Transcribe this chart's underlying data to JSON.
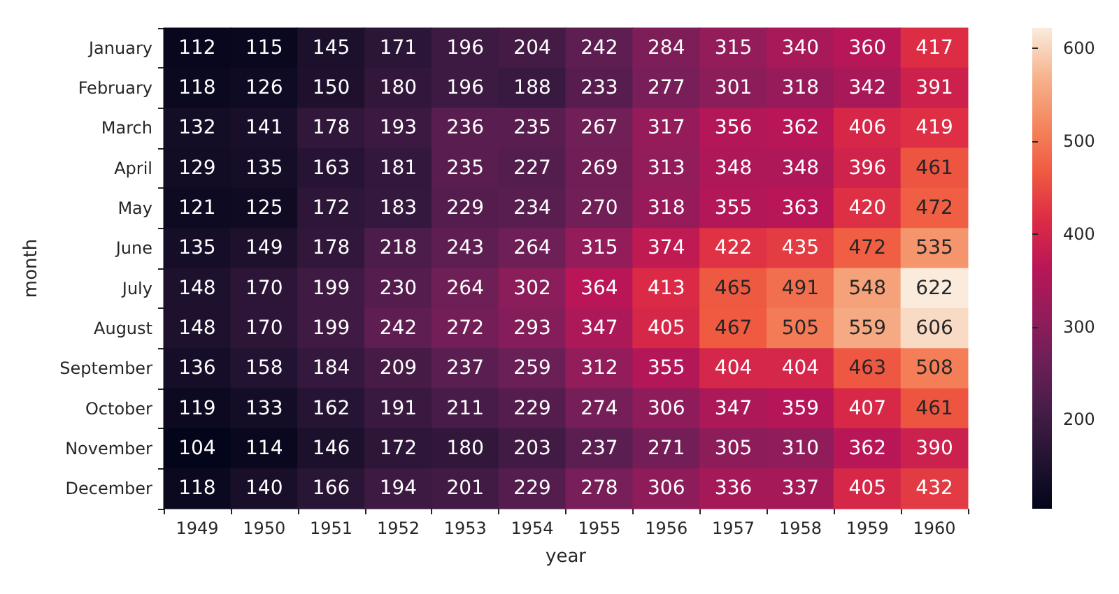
{
  "chart_data": {
    "type": "heatmap",
    "xlabel": "year",
    "ylabel": "month",
    "categories": [
      "1949",
      "1950",
      "1951",
      "1952",
      "1953",
      "1954",
      "1955",
      "1956",
      "1957",
      "1958",
      "1959",
      "1960"
    ],
    "y_categories": [
      "January",
      "February",
      "March",
      "April",
      "May",
      "June",
      "July",
      "August",
      "September",
      "October",
      "November",
      "December"
    ],
    "cells": [
      [
        112,
        115,
        145,
        171,
        196,
        204,
        242,
        284,
        315,
        340,
        360,
        417
      ],
      [
        118,
        126,
        150,
        180,
        196,
        188,
        233,
        277,
        301,
        318,
        342,
        391
      ],
      [
        132,
        141,
        178,
        193,
        236,
        235,
        267,
        317,
        356,
        362,
        406,
        419
      ],
      [
        129,
        135,
        163,
        181,
        235,
        227,
        269,
        313,
        348,
        348,
        396,
        461
      ],
      [
        121,
        125,
        172,
        183,
        229,
        234,
        270,
        318,
        355,
        363,
        420,
        472
      ],
      [
        135,
        149,
        178,
        218,
        243,
        264,
        315,
        374,
        422,
        435,
        472,
        535
      ],
      [
        148,
        170,
        199,
        230,
        264,
        302,
        364,
        413,
        465,
        491,
        548,
        622
      ],
      [
        148,
        170,
        199,
        242,
        272,
        293,
        347,
        405,
        467,
        505,
        559,
        606
      ],
      [
        136,
        158,
        184,
        209,
        237,
        259,
        312,
        355,
        404,
        404,
        463,
        508
      ],
      [
        119,
        133,
        162,
        191,
        211,
        229,
        274,
        306,
        347,
        359,
        407,
        461
      ],
      [
        104,
        114,
        146,
        172,
        180,
        203,
        237,
        271,
        305,
        310,
        362,
        390
      ],
      [
        118,
        140,
        166,
        194,
        201,
        229,
        278,
        306,
        336,
        337,
        405,
        432
      ]
    ],
    "data_labels": true,
    "clim": [
      104,
      622
    ],
    "cticks": [
      200,
      300,
      400,
      500,
      600
    ]
  }
}
